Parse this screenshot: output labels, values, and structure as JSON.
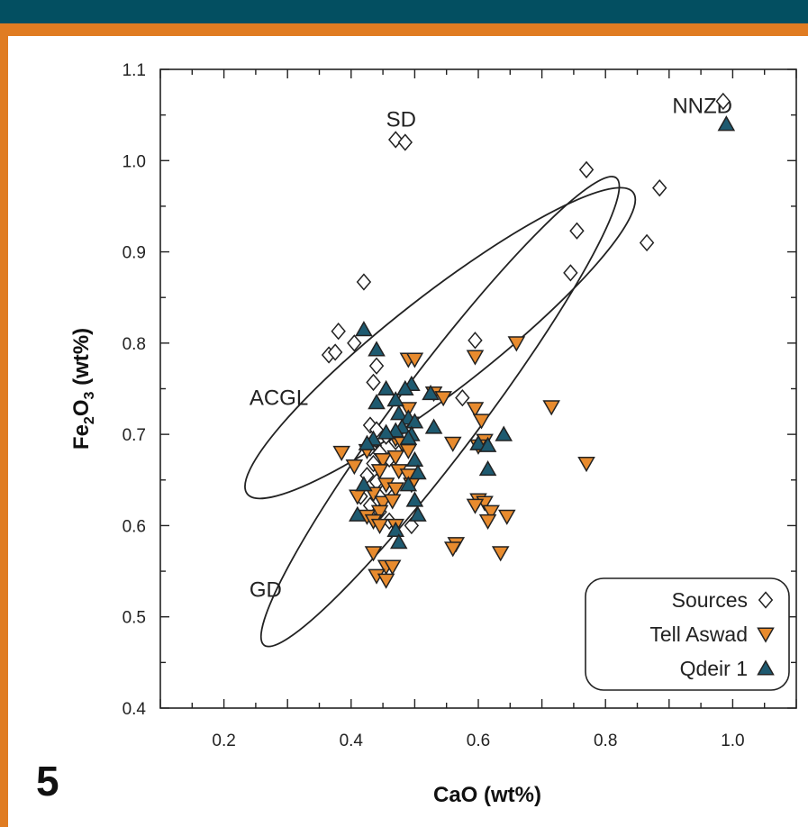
{
  "figure": {
    "number": "5"
  },
  "colors": {
    "topbar": "#034f61",
    "border": "#e07c22",
    "aswad": "#e88b2e",
    "qdeir": "#1e5a70",
    "sources": "#ffffff"
  },
  "chart_data": {
    "type": "scatter",
    "xlabel": "CaO (wt%)",
    "ylabel_parts": {
      "pre": "Fe",
      "sub1": "2",
      "mid": "O",
      "sub2": "3",
      "post": " (wt%)"
    },
    "xlim": [
      0.1,
      1.1
    ],
    "ylim": [
      0.4,
      1.1
    ],
    "xticks": [
      "0.2",
      "0.4",
      "0.6",
      "0.8",
      "1.0"
    ],
    "yticks": [
      "0.4",
      "0.5",
      "0.6",
      "0.7",
      "0.8",
      "0.9",
      "1.0",
      "1.1"
    ],
    "grid": false,
    "legend_position": "bottom-right",
    "annotations": [
      {
        "text": "SD",
        "x": 0.455,
        "y": 1.045
      },
      {
        "text": "NNZD",
        "x": 0.905,
        "y": 1.06
      },
      {
        "text": "ACGL",
        "x": 0.24,
        "y": 0.74
      },
      {
        "text": "GD",
        "x": 0.24,
        "y": 0.53
      }
    ],
    "ellipses": [
      {
        "name": "ACGL",
        "cx": 0.54,
        "cy": 0.8,
        "rx": 0.385,
        "ry": 0.075,
        "angle_deg": -38
      },
      {
        "name": "GD",
        "cx": 0.54,
        "cy": 0.725,
        "rx": 0.46,
        "ry": 0.065,
        "angle_deg": -53
      }
    ],
    "series": [
      {
        "name": "Sources",
        "marker": "diamond",
        "points": [
          [
            0.985,
            1.065
          ],
          [
            0.47,
            1.023
          ],
          [
            0.485,
            1.02
          ],
          [
            0.77,
            0.99
          ],
          [
            0.885,
            0.97
          ],
          [
            0.755,
            0.923
          ],
          [
            0.865,
            0.91
          ],
          [
            0.745,
            0.877
          ],
          [
            0.42,
            0.867
          ],
          [
            0.38,
            0.813
          ],
          [
            0.405,
            0.8
          ],
          [
            0.595,
            0.803
          ],
          [
            0.365,
            0.787
          ],
          [
            0.375,
            0.79
          ],
          [
            0.44,
            0.775
          ],
          [
            0.435,
            0.757
          ],
          [
            0.575,
            0.74
          ],
          [
            0.43,
            0.71
          ],
          [
            0.44,
            0.705
          ],
          [
            0.455,
            0.698
          ],
          [
            0.47,
            0.692
          ],
          [
            0.43,
            0.685
          ],
          [
            0.445,
            0.68
          ],
          [
            0.46,
            0.673
          ],
          [
            0.435,
            0.668
          ],
          [
            0.425,
            0.655
          ],
          [
            0.44,
            0.648
          ],
          [
            0.455,
            0.64
          ],
          [
            0.415,
            0.632
          ],
          [
            0.43,
            0.622
          ],
          [
            0.445,
            0.615
          ],
          [
            0.46,
            0.605
          ],
          [
            0.495,
            0.6
          ]
        ]
      },
      {
        "name": "Tell Aswad",
        "marker": "triangle-down",
        "points": [
          [
            0.49,
            0.782
          ],
          [
            0.5,
            0.782
          ],
          [
            0.595,
            0.785
          ],
          [
            0.66,
            0.8
          ],
          [
            0.53,
            0.745
          ],
          [
            0.545,
            0.74
          ],
          [
            0.49,
            0.728
          ],
          [
            0.595,
            0.728
          ],
          [
            0.715,
            0.73
          ],
          [
            0.495,
            0.712
          ],
          [
            0.605,
            0.715
          ],
          [
            0.47,
            0.695
          ],
          [
            0.48,
            0.69
          ],
          [
            0.56,
            0.69
          ],
          [
            0.61,
            0.693
          ],
          [
            0.6,
            0.687
          ],
          [
            0.385,
            0.68
          ],
          [
            0.425,
            0.682
          ],
          [
            0.45,
            0.672
          ],
          [
            0.47,
            0.675
          ],
          [
            0.49,
            0.682
          ],
          [
            0.405,
            0.665
          ],
          [
            0.445,
            0.66
          ],
          [
            0.475,
            0.66
          ],
          [
            0.49,
            0.655
          ],
          [
            0.455,
            0.645
          ],
          [
            0.47,
            0.64
          ],
          [
            0.495,
            0.645
          ],
          [
            0.435,
            0.635
          ],
          [
            0.41,
            0.632
          ],
          [
            0.45,
            0.625
          ],
          [
            0.465,
            0.627
          ],
          [
            0.445,
            0.615
          ],
          [
            0.425,
            0.61
          ],
          [
            0.435,
            0.605
          ],
          [
            0.445,
            0.6
          ],
          [
            0.47,
            0.6
          ],
          [
            0.6,
            0.628
          ],
          [
            0.61,
            0.625
          ],
          [
            0.595,
            0.622
          ],
          [
            0.62,
            0.615
          ],
          [
            0.645,
            0.61
          ],
          [
            0.615,
            0.605
          ],
          [
            0.565,
            0.58
          ],
          [
            0.56,
            0.575
          ],
          [
            0.435,
            0.57
          ],
          [
            0.635,
            0.57
          ],
          [
            0.455,
            0.555
          ],
          [
            0.465,
            0.555
          ],
          [
            0.44,
            0.545
          ],
          [
            0.455,
            0.54
          ],
          [
            0.77,
            0.668
          ]
        ]
      },
      {
        "name": "Qdeir 1",
        "marker": "triangle-up",
        "points": [
          [
            0.99,
            1.04
          ],
          [
            0.42,
            0.815
          ],
          [
            0.44,
            0.793
          ],
          [
            0.495,
            0.755
          ],
          [
            0.485,
            0.75
          ],
          [
            0.455,
            0.75
          ],
          [
            0.525,
            0.745
          ],
          [
            0.47,
            0.738
          ],
          [
            0.44,
            0.735
          ],
          [
            0.475,
            0.723
          ],
          [
            0.49,
            0.718
          ],
          [
            0.5,
            0.714
          ],
          [
            0.48,
            0.708
          ],
          [
            0.47,
            0.704
          ],
          [
            0.53,
            0.708
          ],
          [
            0.495,
            0.7
          ],
          [
            0.435,
            0.695
          ],
          [
            0.425,
            0.69
          ],
          [
            0.455,
            0.702
          ],
          [
            0.49,
            0.696
          ],
          [
            0.64,
            0.7
          ],
          [
            0.6,
            0.69
          ],
          [
            0.615,
            0.688
          ],
          [
            0.5,
            0.672
          ],
          [
            0.505,
            0.658
          ],
          [
            0.615,
            0.662
          ],
          [
            0.49,
            0.645
          ],
          [
            0.42,
            0.645
          ],
          [
            0.5,
            0.628
          ],
          [
            0.41,
            0.612
          ],
          [
            0.47,
            0.595
          ],
          [
            0.505,
            0.612
          ],
          [
            0.475,
            0.582
          ]
        ]
      }
    ],
    "legend": [
      {
        "label": "Sources",
        "marker": "diamond"
      },
      {
        "label": "Tell Aswad",
        "marker": "triangle-down"
      },
      {
        "label": "Qdeir 1",
        "marker": "triangle-up"
      }
    ]
  }
}
